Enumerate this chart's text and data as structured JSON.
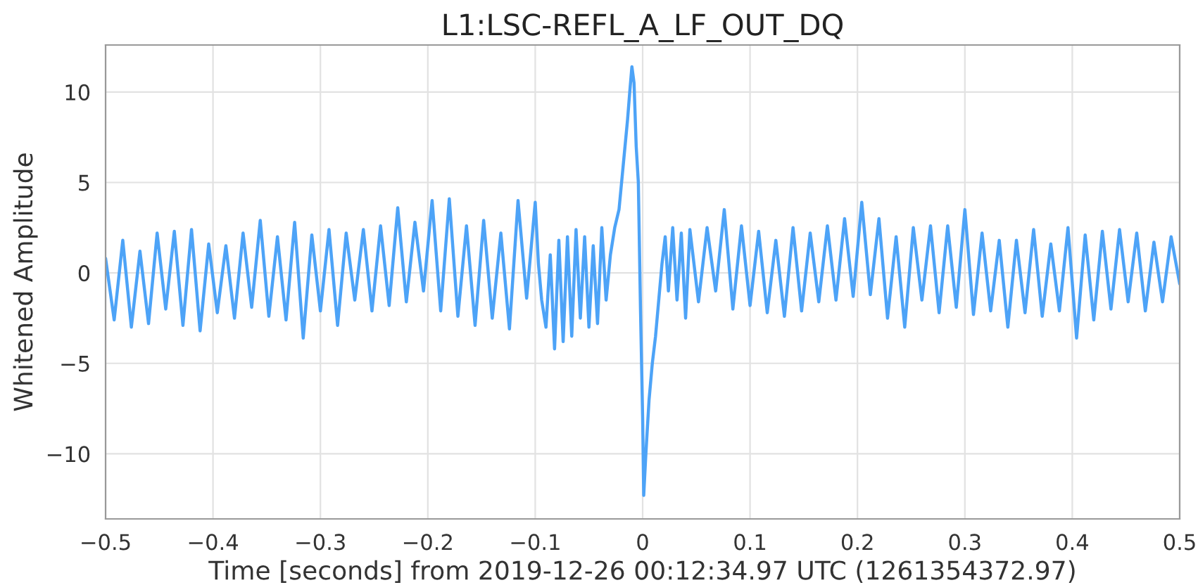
{
  "chart_data": {
    "type": "line",
    "title": "L1:LSC-REFL_A_LF_OUT_DQ",
    "xlabel": "Time [seconds] from 2019-12-26 00:12:34.97 UTC (1261354372.97)",
    "ylabel": "Whitened Amplitude",
    "series": [
      {
        "color": "#4da3f7",
        "x": [
          -0.5,
          -0.492,
          -0.484,
          -0.476,
          -0.468,
          -0.46,
          -0.452,
          -0.444,
          -0.436,
          -0.428,
          -0.42,
          -0.412,
          -0.404,
          -0.396,
          -0.388,
          -0.38,
          -0.372,
          -0.364,
          -0.356,
          -0.348,
          -0.34,
          -0.332,
          -0.324,
          -0.316,
          -0.308,
          -0.3,
          -0.292,
          -0.284,
          -0.276,
          -0.268,
          -0.26,
          -0.252,
          -0.244,
          -0.236,
          -0.228,
          -0.22,
          -0.212,
          -0.204,
          -0.196,
          -0.188,
          -0.18,
          -0.172,
          -0.164,
          -0.156,
          -0.148,
          -0.14,
          -0.132,
          -0.124,
          -0.116,
          -0.108,
          -0.1,
          -0.097,
          -0.094,
          -0.09,
          -0.086,
          -0.082,
          -0.078,
          -0.074,
          -0.07,
          -0.066,
          -0.062,
          -0.058,
          -0.054,
          -0.05,
          -0.046,
          -0.042,
          -0.038,
          -0.034,
          -0.03,
          -0.026,
          -0.022,
          -0.018,
          -0.014,
          -0.012,
          -0.01,
          -0.008,
          -0.006,
          -0.004,
          -0.002,
          0,
          0.001,
          0.003,
          0.006,
          0.009,
          0.012,
          0.015,
          0.018,
          0.021,
          0.024,
          0.028,
          0.032,
          0.036,
          0.04,
          0.044,
          0.052,
          0.06,
          0.068,
          0.076,
          0.084,
          0.092,
          0.1,
          0.108,
          0.116,
          0.124,
          0.132,
          0.14,
          0.148,
          0.156,
          0.164,
          0.172,
          0.18,
          0.188,
          0.196,
          0.204,
          0.212,
          0.22,
          0.228,
          0.236,
          0.244,
          0.252,
          0.26,
          0.268,
          0.276,
          0.284,
          0.292,
          0.3,
          0.308,
          0.316,
          0.324,
          0.332,
          0.34,
          0.348,
          0.356,
          0.364,
          0.372,
          0.38,
          0.388,
          0.396,
          0.404,
          0.412,
          0.42,
          0.428,
          0.436,
          0.444,
          0.452,
          0.46,
          0.468,
          0.476,
          0.484,
          0.492,
          0.5
        ],
        "values": [
          0.8,
          -2.6,
          1.8,
          -3.0,
          1.2,
          -2.8,
          2.2,
          -2.0,
          2.3,
          -2.9,
          2.4,
          -3.2,
          1.6,
          -2.2,
          1.5,
          -2.5,
          2.2,
          -1.9,
          2.9,
          -2.4,
          2.0,
          -2.6,
          2.8,
          -3.6,
          2.1,
          -2.1,
          2.4,
          -2.9,
          2.2,
          -1.5,
          2.4,
          -2.1,
          2.6,
          -1.8,
          3.6,
          -1.6,
          2.8,
          -1.0,
          4.0,
          -2.1,
          4.1,
          -2.4,
          2.6,
          -2.9,
          2.9,
          -2.5,
          2.2,
          -3.1,
          4.0,
          -1.4,
          3.9,
          0.5,
          -1.5,
          -3.0,
          1.0,
          -4.2,
          1.8,
          -3.8,
          2.0,
          -3.5,
          2.4,
          -2.5,
          2.0,
          -3.0,
          1.5,
          -2.8,
          2.5,
          -1.5,
          1.0,
          2.5,
          3.5,
          6.0,
          8.5,
          10.0,
          11.4,
          10.5,
          7.0,
          5.0,
          -2.0,
          -8.0,
          -12.3,
          -10.0,
          -7.0,
          -5.0,
          -3.5,
          -1.5,
          0.5,
          2.0,
          -1.0,
          2.5,
          -1.5,
          2.2,
          -2.5,
          2.4,
          -1.6,
          2.5,
          -1.0,
          3.5,
          -2.0,
          2.6,
          -1.8,
          2.3,
          -2.2,
          1.8,
          -2.4,
          2.5,
          -2.1,
          2.2,
          -1.6,
          2.6,
          -1.5,
          3.0,
          -1.3,
          3.9,
          -1.2,
          3.0,
          -2.5,
          2.0,
          -3.0,
          2.5,
          -1.5,
          2.6,
          -2.2,
          2.6,
          -1.9,
          3.5,
          -2.3,
          2.2,
          -2.1,
          1.8,
          -3.0,
          1.8,
          -2.2,
          2.4,
          -2.4,
          1.6,
          -2.1,
          2.5,
          -3.6,
          2.1,
          -2.6,
          2.3,
          -2.0,
          2.4,
          -1.6,
          2.2,
          -2.1,
          1.7,
          -1.6,
          2.0,
          -0.6
        ]
      }
    ],
    "xlim": [
      -0.5,
      0.5
    ],
    "xticks": [
      {
        "value": -0.5,
        "label": "−0.5"
      },
      {
        "value": -0.4,
        "label": "−0.4"
      },
      {
        "value": -0.3,
        "label": "−0.3"
      },
      {
        "value": -0.2,
        "label": "−0.2"
      },
      {
        "value": -0.1,
        "label": "−0.1"
      },
      0,
      0.1,
      0.2,
      0.3,
      0.4,
      0.5
    ],
    "ylim": [
      -13.6,
      12.6
    ],
    "yticks": [
      {
        "value": -10,
        "label": "−10"
      },
      {
        "value": -5,
        "label": "−5"
      },
      0,
      5,
      10
    ],
    "grid": true,
    "marker": "none",
    "line_style": "solid",
    "legend": false
  }
}
